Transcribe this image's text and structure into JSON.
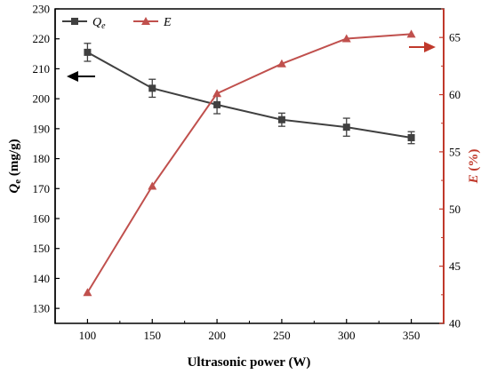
{
  "chart_data": {
    "type": "line",
    "xlabel": "Ultrasonic power (W)",
    "x": [
      100,
      150,
      200,
      250,
      300,
      350
    ],
    "x_ticks": [
      "100",
      "150",
      "200",
      "250",
      "300",
      "350"
    ],
    "xlim": [
      75,
      375
    ],
    "y_left": {
      "label_main": "Q",
      "label_sub": "e",
      "label_unit": " (mg/g)",
      "ticks": [
        "130",
        "140",
        "150",
        "160",
        "170",
        "180",
        "190",
        "200",
        "210",
        "220",
        "230"
      ],
      "lim": [
        125,
        230
      ],
      "color": "#000000"
    },
    "y_right": {
      "label_main": "E",
      "label_unit": " (%)",
      "ticks": [
        "40",
        "45",
        "50",
        "55",
        "60",
        "65"
      ],
      "lim": [
        40,
        67.5
      ],
      "color": "#c0392b"
    },
    "series": [
      {
        "name_main": "Q",
        "name_sub": "e",
        "axis": "left",
        "marker": "square",
        "color": "#404040",
        "values": [
          215.5,
          203.5,
          198,
          193,
          190.5,
          187
        ],
        "errors": [
          3,
          3,
          3,
          2.2,
          3,
          2
        ]
      },
      {
        "name_main": "E",
        "axis": "right",
        "marker": "triangle",
        "color": "#c0504d",
        "values": [
          42.7,
          52,
          60.1,
          62.7,
          64.9,
          65.3
        ]
      }
    ],
    "legend_position": "top-left",
    "grid": false
  }
}
